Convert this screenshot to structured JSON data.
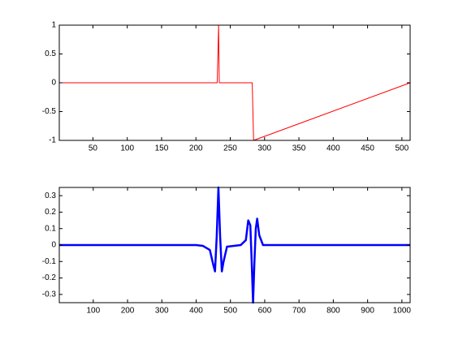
{
  "chart_data": [
    {
      "type": "line",
      "color": "#ff0000",
      "x": [
        1,
        231,
        232,
        233,
        234,
        282,
        283,
        284,
        512
      ],
      "values": [
        0,
        0,
        0.5,
        1,
        0,
        0,
        -0.5,
        -1,
        0
      ],
      "xlim": [
        1,
        512
      ],
      "xticks": [
        50,
        100,
        150,
        200,
        250,
        300,
        350,
        400,
        450,
        500
      ],
      "ylim": [
        -1,
        1
      ],
      "yticks": [
        -1,
        -0.5,
        0,
        0.5,
        1
      ],
      "grid": false
    },
    {
      "type": "line",
      "color": "#0000ff",
      "x": [
        1,
        400,
        420,
        440,
        450,
        455,
        460,
        465,
        470,
        475,
        480,
        490,
        530,
        545,
        552,
        558,
        562,
        566,
        570,
        574,
        578,
        584,
        595,
        620,
        1024
      ],
      "values": [
        0,
        0,
        -0.005,
        -0.03,
        -0.12,
        -0.16,
        0.05,
        0.35,
        0.05,
        -0.16,
        -0.1,
        -0.01,
        0,
        0.03,
        0.15,
        0.12,
        -0.1,
        -0.35,
        -0.1,
        0.1,
        0.16,
        0.06,
        0,
        0,
        0
      ],
      "xlim": [
        1,
        1024
      ],
      "xticks": [
        100,
        200,
        300,
        400,
        500,
        600,
        700,
        800,
        900,
        1000
      ],
      "ylim": [
        -0.35,
        0.35
      ],
      "yticks": [
        -0.3,
        -0.2,
        -0.1,
        0,
        0.1,
        0.2,
        0.3
      ],
      "grid": false
    }
  ]
}
